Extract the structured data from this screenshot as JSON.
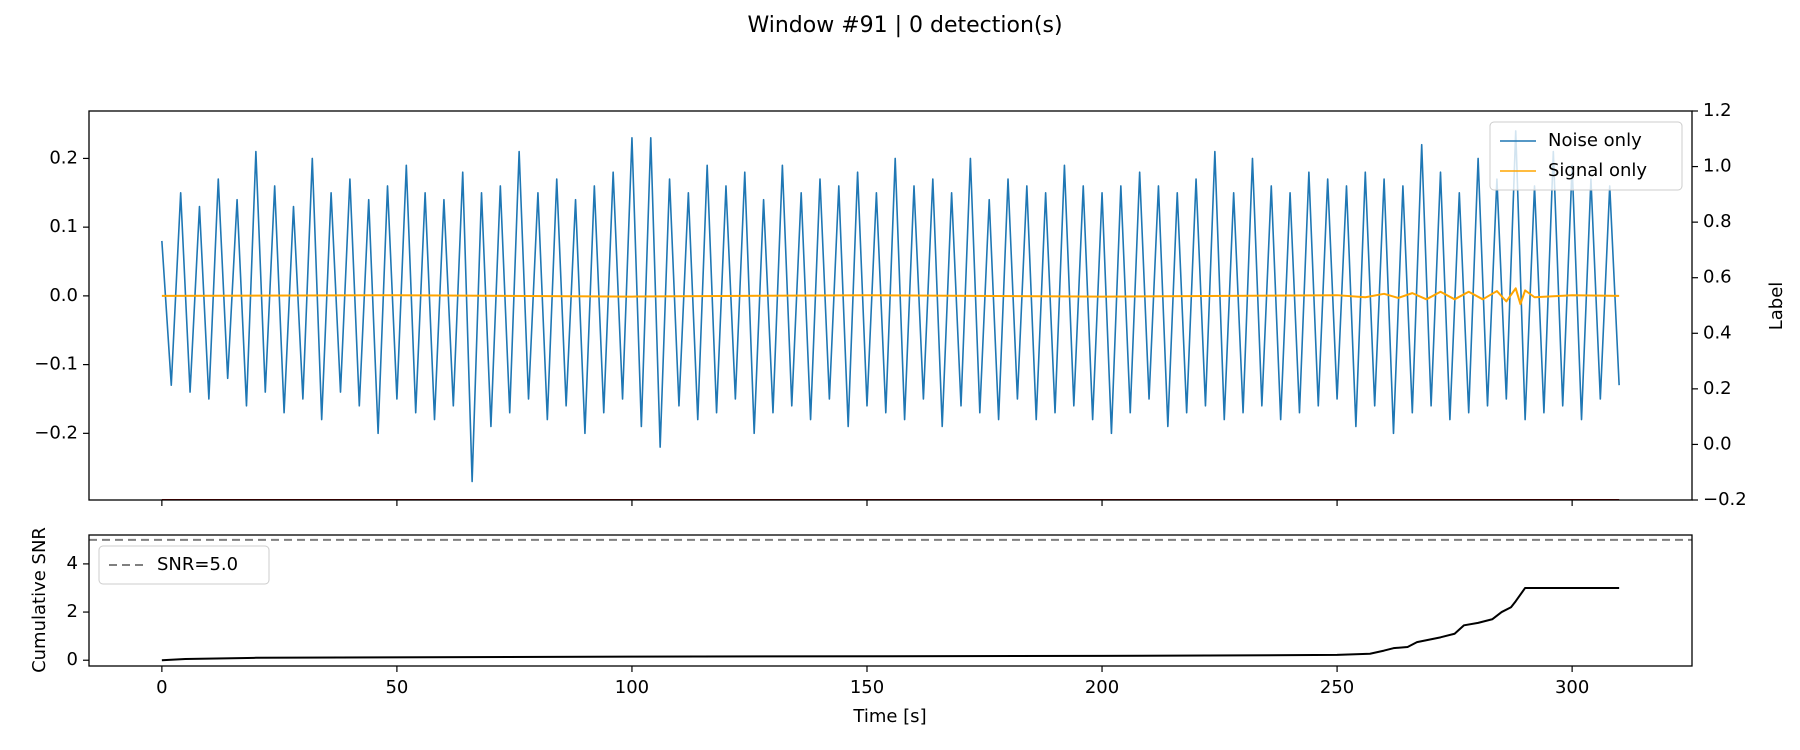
{
  "chart_data": [
    {
      "type": "line",
      "title": "Window #91 | 0 detection(s)",
      "y2label": "Label",
      "xlim": [
        -15.5,
        325.5
      ],
      "ylim": [
        -0.297,
        0.269
      ],
      "yticks": [
        {
          "value": -0.2,
          "label": "−0.2"
        },
        {
          "value": -0.1,
          "label": "−0.1"
        },
        {
          "value": 0,
          "label": "0.0"
        },
        0.1,
        0.2
      ],
      "y2lim": [
        -0.2,
        1.2
      ],
      "y2ticks": [
        {
          "value": -0.2,
          "label": "−0.2"
        },
        {
          "value": 0,
          "label": "0.0"
        },
        0.2,
        0.4,
        0.6,
        0.8,
        {
          "value": 1,
          "label": "1.0"
        },
        1.2
      ],
      "legend": "upper right",
      "series": [
        {
          "name": "Noise only",
          "color": "#1f77b4",
          "x": [
            0,
            2,
            4,
            6,
            8,
            10,
            12,
            14,
            16,
            18,
            20,
            22,
            24,
            26,
            28,
            30,
            32,
            34,
            36,
            38,
            40,
            42,
            44,
            46,
            48,
            50,
            52,
            54,
            56,
            58,
            60,
            62,
            64,
            66,
            68,
            70,
            72,
            74,
            76,
            78,
            80,
            82,
            84,
            86,
            88,
            90,
            92,
            94,
            96,
            98,
            100,
            102,
            104,
            106,
            108,
            110,
            112,
            114,
            116,
            118,
            120,
            122,
            124,
            126,
            128,
            130,
            132,
            134,
            136,
            138,
            140,
            142,
            144,
            146,
            148,
            150,
            152,
            154,
            156,
            158,
            160,
            162,
            164,
            166,
            168,
            170,
            172,
            174,
            176,
            178,
            180,
            182,
            184,
            186,
            188,
            190,
            192,
            194,
            196,
            198,
            200,
            202,
            204,
            206,
            208,
            210,
            212,
            214,
            216,
            218,
            220,
            222,
            224,
            226,
            228,
            230,
            232,
            234,
            236,
            238,
            240,
            242,
            244,
            246,
            248,
            250,
            252,
            254,
            256,
            258,
            260,
            262,
            264,
            266,
            268,
            270,
            272,
            274,
            276,
            278,
            280,
            282,
            284,
            286,
            288,
            290,
            292,
            294,
            296,
            298,
            300,
            302,
            304,
            306,
            308,
            310
          ],
          "values": [
            0.08,
            -0.13,
            0.15,
            -0.14,
            0.13,
            -0.15,
            0.17,
            -0.12,
            0.14,
            -0.16,
            0.21,
            -0.14,
            0.16,
            -0.17,
            0.13,
            -0.15,
            0.2,
            -0.18,
            0.15,
            -0.14,
            0.17,
            -0.16,
            0.14,
            -0.2,
            0.16,
            -0.15,
            0.19,
            -0.17,
            0.15,
            -0.18,
            0.14,
            -0.16,
            0.18,
            -0.27,
            0.15,
            -0.19,
            0.16,
            -0.17,
            0.21,
            -0.15,
            0.15,
            -0.18,
            0.17,
            -0.16,
            0.14,
            -0.2,
            0.16,
            -0.17,
            0.18,
            -0.15,
            0.23,
            -0.19,
            0.23,
            -0.22,
            0.17,
            -0.16,
            0.15,
            -0.18,
            0.19,
            -0.17,
            0.16,
            -0.15,
            0.18,
            -0.2,
            0.14,
            -0.17,
            0.19,
            -0.16,
            0.15,
            -0.18,
            0.17,
            -0.15,
            0.16,
            -0.19,
            0.18,
            -0.16,
            0.15,
            -0.17,
            0.2,
            -0.18,
            0.16,
            -0.15,
            0.17,
            -0.19,
            0.15,
            -0.16,
            0.2,
            -0.17,
            0.14,
            -0.18,
            0.17,
            -0.15,
            0.16,
            -0.18,
            0.15,
            -0.17,
            0.19,
            -0.16,
            0.16,
            -0.18,
            0.15,
            -0.2,
            0.16,
            -0.17,
            0.18,
            -0.15,
            0.16,
            -0.19,
            0.15,
            -0.17,
            0.17,
            -0.16,
            0.21,
            -0.18,
            0.15,
            -0.17,
            0.2,
            -0.16,
            0.16,
            -0.18,
            0.15,
            -0.17,
            0.18,
            -0.16,
            0.17,
            -0.15,
            0.16,
            -0.19,
            0.18,
            -0.16,
            0.17,
            -0.2,
            0.16,
            -0.17,
            0.22,
            -0.16,
            0.18,
            -0.18,
            0.15,
            -0.17,
            0.2,
            -0.16,
            0.17,
            -0.15,
            0.24,
            -0.18,
            0.16,
            -0.17,
            0.21,
            -0.16,
            0.19,
            -0.18,
            0.17,
            -0.15,
            0.16,
            -0.13
          ]
        },
        {
          "name": "Signal only",
          "color": "#ffa500",
          "x": [
            0,
            50,
            100,
            150,
            200,
            250,
            256,
            260,
            263,
            266,
            269,
            272,
            275,
            278,
            281,
            284,
            286,
            288,
            289,
            290,
            292,
            300,
            310
          ],
          "values": [
            0,
            0.001,
            -0.001,
            0.001,
            -0.001,
            0.001,
            -0.002,
            0.003,
            -0.003,
            0.004,
            -0.005,
            0.006,
            -0.005,
            0.006,
            -0.005,
            0.007,
            -0.008,
            0.011,
            -0.012,
            0.008,
            -0.002,
            0.001,
            0
          ]
        },
        {
          "color": "#8b0000",
          "axis": "y2",
          "x": [
            0,
            310
          ],
          "values": [
            -0.2,
            -0.2
          ]
        }
      ]
    },
    {
      "type": "line",
      "xlabel": "Time [s]",
      "ylabel": "Cumulative SNR",
      "xlim": [
        -15.5,
        325.5
      ],
      "xticks": [
        0,
        50,
        100,
        150,
        200,
        250,
        300
      ],
      "ylim": [
        -0.24,
        5.2
      ],
      "yticks": [
        0,
        2,
        4
      ],
      "legend": "upper left",
      "hlines": [
        {
          "value": 5,
          "label": "SNR=5.0",
          "color": "#808080"
        }
      ],
      "series": [
        {
          "color": "#000000",
          "x": [
            0,
            5,
            20,
            100,
            200,
            250,
            257,
            260,
            262,
            265,
            267,
            272,
            275,
            277,
            280,
            283,
            285,
            287,
            288,
            290,
            310
          ],
          "values": [
            0,
            0.05,
            0.1,
            0.15,
            0.18,
            0.22,
            0.27,
            0.4,
            0.5,
            0.55,
            0.75,
            0.95,
            1.1,
            1.45,
            1.55,
            1.7,
            2.0,
            2.2,
            2.45,
            3.0,
            3.0
          ]
        }
      ]
    }
  ]
}
